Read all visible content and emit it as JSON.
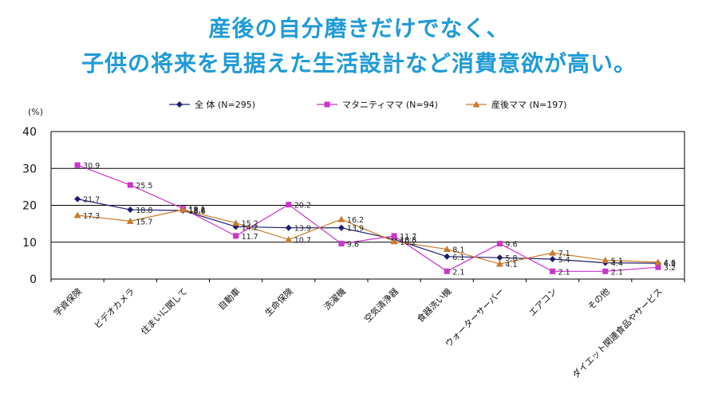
{
  "headline": {
    "line1": "産後の自分磨きだけでなく、",
    "line2": "子供の将来を見据えた生活設計など消費意欲が高い。"
  },
  "chart_data": {
    "type": "line",
    "ylabel": "(%)",
    "ylim": [
      0,
      40
    ],
    "yticks": [
      "0",
      "10",
      "20",
      "30",
      "40"
    ],
    "ytick_values": [
      0,
      10,
      20,
      30,
      40
    ],
    "grid": true,
    "legend_position": "top-center",
    "categories": [
      "学資保険",
      "ビデオカメラ",
      "住まいに関して",
      "自動車",
      "生命保険",
      "洗濯機",
      "空気清浄器",
      "食器洗い機",
      "ウォーターサーバー",
      "エアコン",
      "その他",
      "ダイエット関連食品やサービス"
    ],
    "series": [
      {
        "name": "全 体 (N=295)",
        "color": "#1c1c6e",
        "marker": "diamond",
        "values": [
          21.7,
          18.8,
          18.6,
          14.2,
          13.9,
          13.9,
          10.8,
          6.1,
          5.8,
          5.4,
          4.4,
          4.3
        ],
        "labels": [
          "21.7",
          "18.8",
          "18.6",
          "14.2",
          "13.9",
          "13.9",
          "10.8",
          "6.1",
          "5.8",
          "5.4",
          "4.4",
          "4.3"
        ]
      },
      {
        "name": "マタニティママ (N=94)",
        "color": "#cc33cc",
        "marker": "square",
        "values": [
          30.9,
          25.5,
          19.1,
          11.7,
          20.2,
          9.6,
          11.7,
          2.1,
          9.6,
          2.1,
          2.1,
          3.2
        ],
        "labels": [
          "30.9",
          "25.5",
          "19.1",
          "11.7",
          "20.2",
          "9.6",
          "11.7",
          "2.1",
          "9.6",
          "2.1",
          "2.1",
          "3.2"
        ]
      },
      {
        "name": "産後ママ (N=197)",
        "color": "#c87a2a",
        "marker": "triangle",
        "values": [
          17.3,
          15.7,
          18.8,
          15.2,
          10.7,
          16.2,
          10.2,
          8.1,
          4.1,
          7.1,
          5.1,
          4.6
        ],
        "labels": [
          "17.3",
          "15.7",
          "18.8",
          "15.2",
          "10.7",
          "16.2",
          "10.2",
          "8.1",
          "4.1",
          "7.1",
          "5.1",
          "4.6"
        ]
      }
    ]
  }
}
